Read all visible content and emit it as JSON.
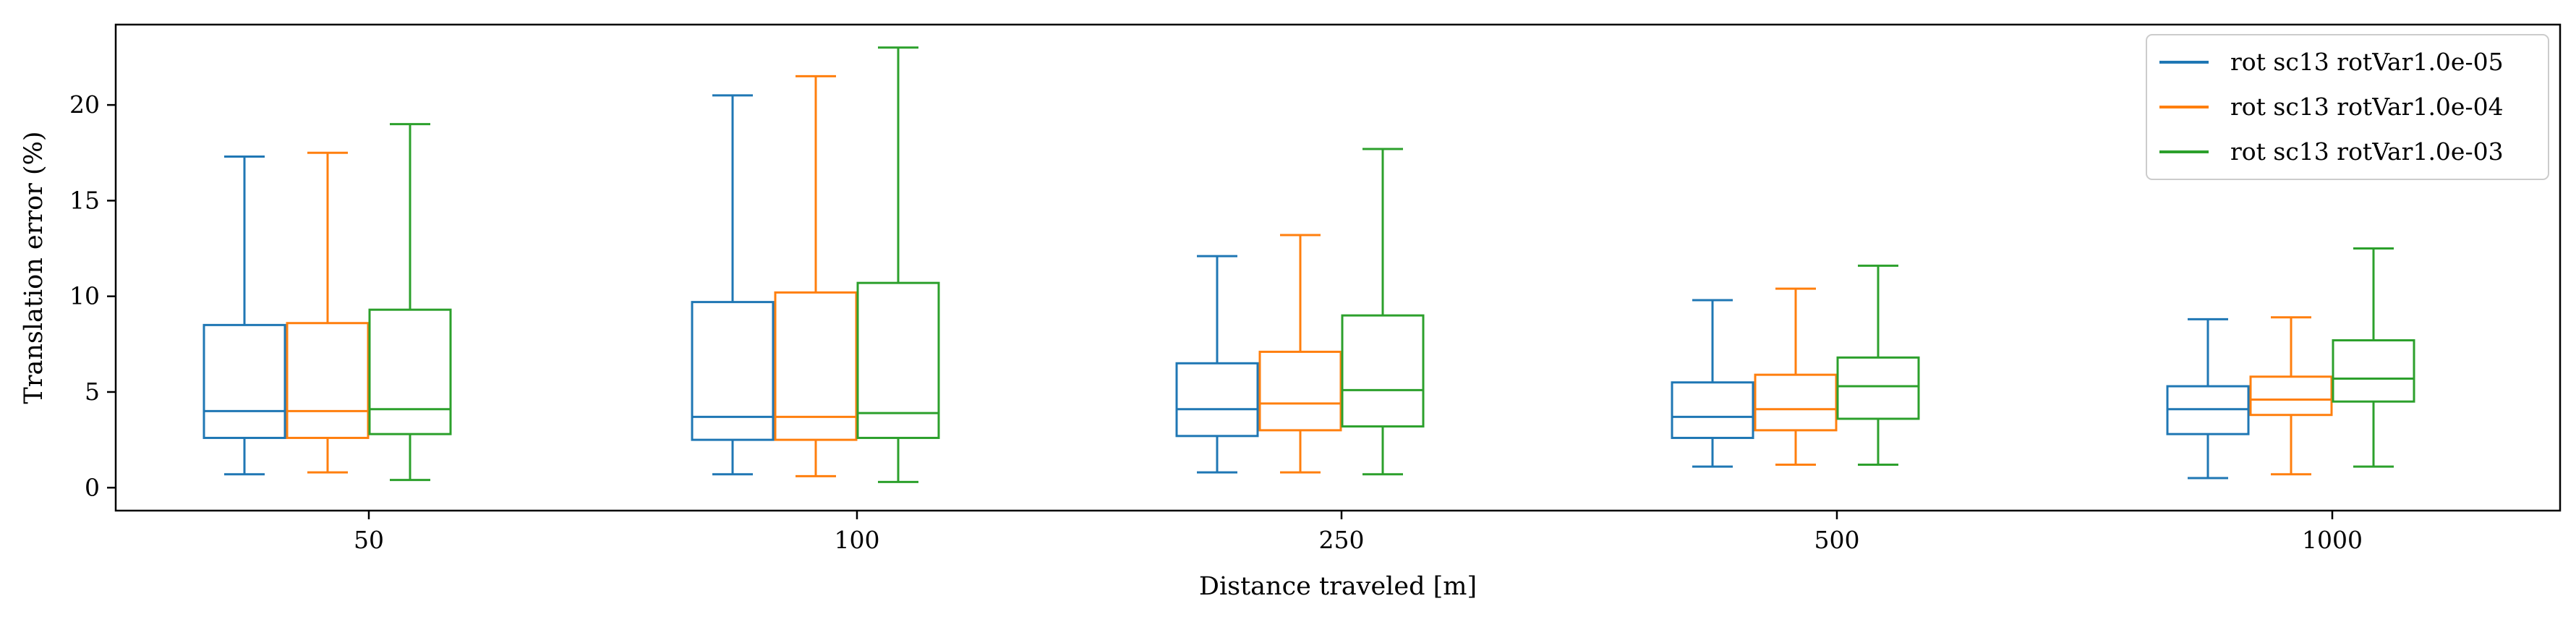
{
  "chart_data": {
    "type": "boxplot",
    "title": "",
    "xlabel": "Distance traveled [m]",
    "ylabel": "Translation error (%)",
    "categories": [
      "50",
      "100",
      "250",
      "500",
      "1000"
    ],
    "ylim": [
      -1.2,
      24.2
    ],
    "yticks": [
      0,
      5,
      10,
      15,
      20
    ],
    "grid": false,
    "legend_position": "top-right",
    "series": [
      {
        "name": "rot sc13 rotVar1.0e-05",
        "color": "#1f77b4",
        "boxes": [
          {
            "whislo": 0.7,
            "q1": 2.6,
            "med": 4.0,
            "q3": 8.5,
            "whishi": 17.3
          },
          {
            "whislo": 0.7,
            "q1": 2.5,
            "med": 3.7,
            "q3": 9.7,
            "whishi": 20.5
          },
          {
            "whislo": 0.8,
            "q1": 2.7,
            "med": 4.1,
            "q3": 6.5,
            "whishi": 12.1
          },
          {
            "whislo": 1.1,
            "q1": 2.6,
            "med": 3.7,
            "q3": 5.5,
            "whishi": 9.8
          },
          {
            "whislo": 0.5,
            "q1": 2.8,
            "med": 4.1,
            "q3": 5.3,
            "whishi": 8.8
          }
        ]
      },
      {
        "name": "rot sc13 rotVar1.0e-04",
        "color": "#ff7f0e",
        "boxes": [
          {
            "whislo": 0.8,
            "q1": 2.6,
            "med": 4.0,
            "q3": 8.6,
            "whishi": 17.5
          },
          {
            "whislo": 0.6,
            "q1": 2.5,
            "med": 3.7,
            "q3": 10.2,
            "whishi": 21.5
          },
          {
            "whislo": 0.8,
            "q1": 3.0,
            "med": 4.4,
            "q3": 7.1,
            "whishi": 13.2
          },
          {
            "whislo": 1.2,
            "q1": 3.0,
            "med": 4.1,
            "q3": 5.9,
            "whishi": 10.4
          },
          {
            "whislo": 0.7,
            "q1": 3.8,
            "med": 4.6,
            "q3": 5.8,
            "whishi": 8.9
          }
        ]
      },
      {
        "name": "rot sc13 rotVar1.0e-03",
        "color": "#2ca02c",
        "boxes": [
          {
            "whislo": 0.4,
            "q1": 2.8,
            "med": 4.1,
            "q3": 9.3,
            "whishi": 19.0
          },
          {
            "whislo": 0.3,
            "q1": 2.6,
            "med": 3.9,
            "q3": 10.7,
            "whishi": 23.0
          },
          {
            "whislo": 0.7,
            "q1": 3.2,
            "med": 5.1,
            "q3": 9.0,
            "whishi": 17.7
          },
          {
            "whislo": 1.2,
            "q1": 3.6,
            "med": 5.3,
            "q3": 6.8,
            "whishi": 11.6
          },
          {
            "whislo": 1.1,
            "q1": 4.5,
            "med": 5.7,
            "q3": 7.7,
            "whishi": 12.5
          }
        ]
      }
    ]
  }
}
